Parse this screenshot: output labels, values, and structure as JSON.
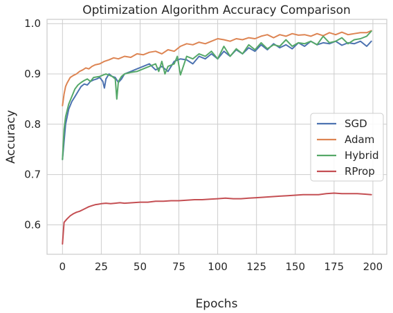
{
  "chart_data": {
    "type": "line",
    "title": "Optimization Algorithm Accuracy Comparison",
    "xlabel": "Epochs",
    "ylabel": "Accuracy",
    "xlim": [
      -9.95,
      208.95
    ],
    "ylim": [
      0.5415,
      1.0085
    ],
    "xticks": [
      0,
      25,
      50,
      75,
      100,
      125,
      150,
      175,
      200
    ],
    "yticks": [
      0.6,
      0.7,
      0.8,
      0.9,
      1.0
    ],
    "xtick_labels": [
      "0",
      "25",
      "50",
      "75",
      "100",
      "125",
      "150",
      "175",
      "200"
    ],
    "ytick_labels": [
      "0.6",
      "0.7",
      "0.8",
      "0.9",
      "1.0"
    ],
    "grid": true,
    "legend_position": "center-right",
    "series": [
      {
        "name": "SGD",
        "color": "#4c72b0",
        "x": [
          0,
          2,
          4,
          6,
          8,
          10,
          12,
          14,
          16,
          18,
          20,
          22,
          24,
          26,
          27,
          28,
          30,
          32,
          34,
          36,
          38,
          40,
          44,
          48,
          52,
          56,
          60,
          64,
          68,
          72,
          76,
          80,
          84,
          88,
          92,
          96,
          100,
          104,
          108,
          112,
          116,
          120,
          124,
          128,
          132,
          136,
          140,
          144,
          148,
          152,
          156,
          160,
          164,
          168,
          172,
          176,
          180,
          184,
          188,
          192,
          196,
          199
        ],
        "y": [
          0.73,
          0.8,
          0.83,
          0.845,
          0.855,
          0.865,
          0.875,
          0.88,
          0.878,
          0.885,
          0.888,
          0.89,
          0.893,
          0.885,
          0.872,
          0.89,
          0.9,
          0.895,
          0.893,
          0.883,
          0.89,
          0.9,
          0.905,
          0.91,
          0.915,
          0.92,
          0.908,
          0.915,
          0.905,
          0.925,
          0.93,
          0.928,
          0.92,
          0.935,
          0.93,
          0.94,
          0.93,
          0.945,
          0.935,
          0.948,
          0.94,
          0.952,
          0.945,
          0.958,
          0.948,
          0.96,
          0.952,
          0.958,
          0.95,
          0.962,
          0.955,
          0.965,
          0.958,
          0.962,
          0.96,
          0.965,
          0.957,
          0.962,
          0.96,
          0.965,
          0.955,
          0.965
        ]
      },
      {
        "name": "Adam",
        "color": "#dd8452",
        "x": [
          0,
          1,
          2,
          3,
          5,
          7,
          9,
          11,
          13,
          15,
          17,
          19,
          21,
          24,
          27,
          30,
          33,
          36,
          40,
          44,
          48,
          52,
          56,
          60,
          64,
          68,
          72,
          76,
          80,
          84,
          88,
          92,
          96,
          100,
          104,
          108,
          112,
          116,
          120,
          124,
          128,
          132,
          136,
          140,
          144,
          148,
          152,
          156,
          160,
          164,
          168,
          172,
          176,
          180,
          184,
          188,
          192,
          196,
          199
        ],
        "y": [
          0.837,
          0.86,
          0.875,
          0.882,
          0.893,
          0.897,
          0.9,
          0.905,
          0.908,
          0.912,
          0.91,
          0.915,
          0.918,
          0.92,
          0.925,
          0.928,
          0.932,
          0.93,
          0.935,
          0.933,
          0.94,
          0.938,
          0.943,
          0.945,
          0.94,
          0.948,
          0.945,
          0.955,
          0.96,
          0.958,
          0.963,
          0.96,
          0.965,
          0.97,
          0.968,
          0.965,
          0.97,
          0.968,
          0.972,
          0.97,
          0.975,
          0.978,
          0.972,
          0.978,
          0.975,
          0.98,
          0.977,
          0.978,
          0.975,
          0.98,
          0.976,
          0.982,
          0.978,
          0.983,
          0.978,
          0.98,
          0.982,
          0.982,
          0.986
        ]
      },
      {
        "name": "Hybrid",
        "color": "#55a868",
        "x": [
          0,
          1,
          2,
          4,
          6,
          8,
          10,
          12,
          14,
          16,
          18,
          20,
          24,
          28,
          32,
          34,
          35,
          36,
          38,
          40,
          44,
          48,
          52,
          56,
          60,
          62,
          64,
          66,
          68,
          72,
          74,
          76,
          80,
          84,
          88,
          92,
          96,
          100,
          104,
          108,
          112,
          116,
          120,
          124,
          128,
          132,
          136,
          140,
          144,
          148,
          152,
          156,
          160,
          164,
          168,
          172,
          176,
          180,
          184,
          188,
          192,
          196,
          199
        ],
        "y": [
          0.73,
          0.79,
          0.815,
          0.84,
          0.855,
          0.87,
          0.878,
          0.883,
          0.887,
          0.89,
          0.885,
          0.893,
          0.895,
          0.9,
          0.895,
          0.89,
          0.85,
          0.885,
          0.895,
          0.9,
          0.903,
          0.905,
          0.91,
          0.915,
          0.92,
          0.905,
          0.925,
          0.9,
          0.915,
          0.92,
          0.935,
          0.898,
          0.935,
          0.93,
          0.94,
          0.935,
          0.945,
          0.93,
          0.955,
          0.935,
          0.95,
          0.94,
          0.958,
          0.948,
          0.962,
          0.95,
          0.958,
          0.955,
          0.968,
          0.955,
          0.962,
          0.96,
          0.965,
          0.958,
          0.975,
          0.962,
          0.965,
          0.972,
          0.96,
          0.968,
          0.97,
          0.975,
          0.985
        ]
      },
      {
        "name": "RProp",
        "color": "#c44e52",
        "x": [
          0,
          1,
          3,
          5,
          7,
          9,
          11,
          13,
          15,
          17,
          19,
          21,
          23,
          25,
          28,
          31,
          34,
          37,
          40,
          45,
          50,
          55,
          60,
          65,
          70,
          75,
          80,
          85,
          90,
          95,
          100,
          105,
          110,
          115,
          120,
          125,
          130,
          135,
          140,
          145,
          150,
          155,
          160,
          165,
          170,
          175,
          180,
          185,
          190,
          195,
          199
        ],
        "y": [
          0.562,
          0.605,
          0.612,
          0.618,
          0.622,
          0.625,
          0.627,
          0.63,
          0.633,
          0.636,
          0.638,
          0.64,
          0.641,
          0.642,
          0.643,
          0.642,
          0.643,
          0.644,
          0.643,
          0.644,
          0.645,
          0.645,
          0.647,
          0.647,
          0.648,
          0.648,
          0.649,
          0.65,
          0.65,
          0.651,
          0.652,
          0.653,
          0.652,
          0.652,
          0.653,
          0.654,
          0.655,
          0.656,
          0.657,
          0.658,
          0.659,
          0.66,
          0.66,
          0.66,
          0.662,
          0.663,
          0.662,
          0.662,
          0.662,
          0.661,
          0.66
        ]
      }
    ]
  }
}
